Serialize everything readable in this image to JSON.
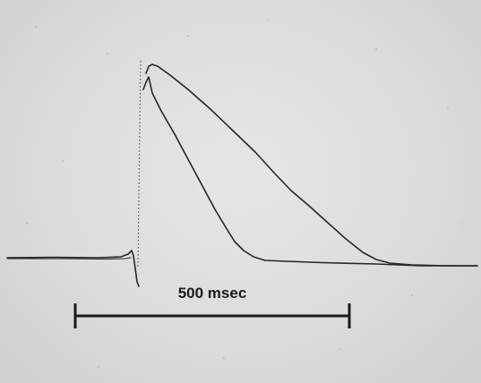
{
  "scale_bar": {
    "label": "500 msec"
  },
  "colors": {
    "background": "#dcdcdc",
    "ink": "#262626"
  }
}
